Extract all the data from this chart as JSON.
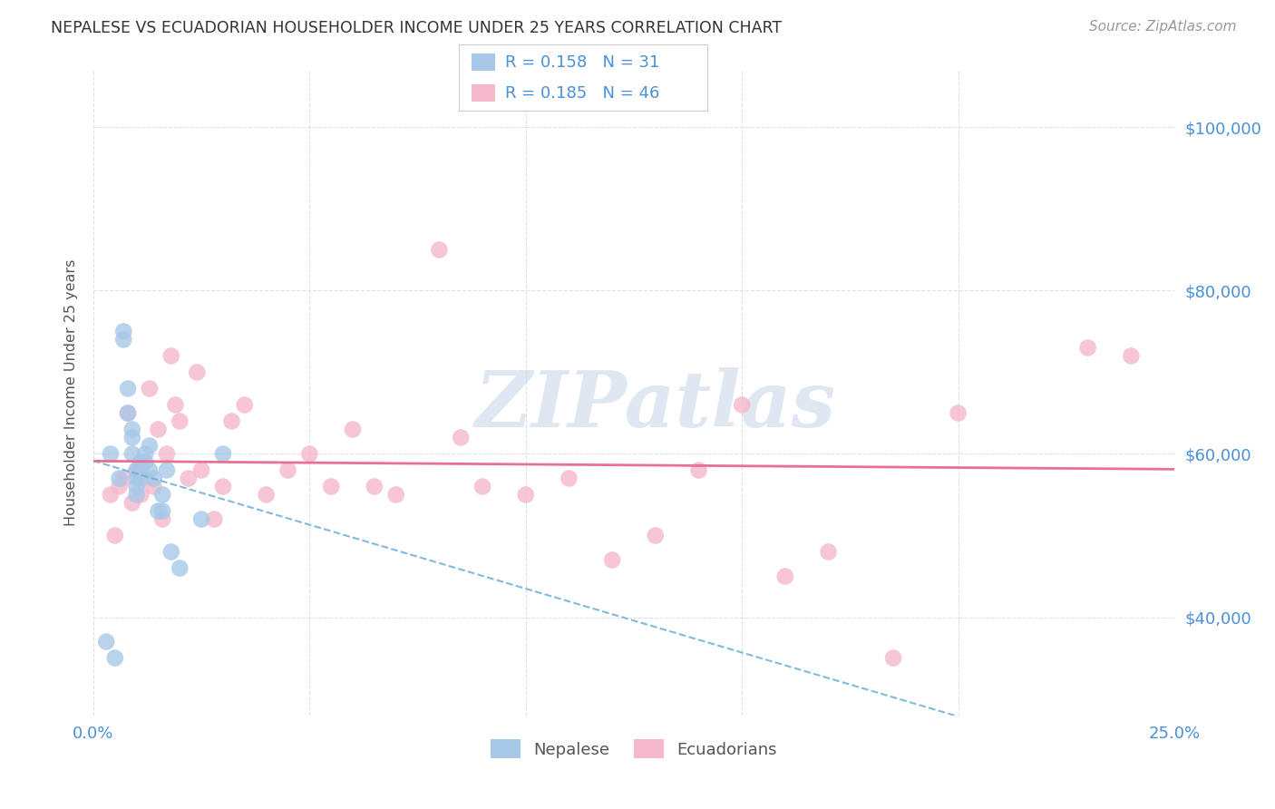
{
  "title": "NEPALESE VS ECUADORIAN HOUSEHOLDER INCOME UNDER 25 YEARS CORRELATION CHART",
  "source": "Source: ZipAtlas.com",
  "ylabel": "Householder Income Under 25 years",
  "watermark": "ZIPatlas",
  "xlim": [
    0.0,
    0.25
  ],
  "ylim": [
    28000,
    107000
  ],
  "xticks": [
    0.0,
    0.05,
    0.1,
    0.15,
    0.2,
    0.25
  ],
  "xticklabels": [
    "0.0%",
    "",
    "",
    "",
    "",
    "25.0%"
  ],
  "yticks": [
    40000,
    60000,
    80000,
    100000
  ],
  "yticklabels": [
    "$40,000",
    "$60,000",
    "$80,000",
    "$100,000"
  ],
  "legend_r_blue": "0.158",
  "legend_n_blue": "31",
  "legend_r_pink": "0.185",
  "legend_n_pink": "46",
  "blue_color": "#a8c8e8",
  "pink_color": "#f5b8cc",
  "blue_line_color": "#6aaed6",
  "pink_line_color": "#e87090",
  "grid_color": "#e0e0e0",
  "title_color": "#333333",
  "axis_color": "#4a90d9",
  "watermark_color": "#c8d8ea",
  "nepalese_x": [
    0.003,
    0.004,
    0.005,
    0.006,
    0.007,
    0.007,
    0.008,
    0.008,
    0.009,
    0.009,
    0.009,
    0.01,
    0.01,
    0.01,
    0.01,
    0.011,
    0.011,
    0.011,
    0.012,
    0.012,
    0.013,
    0.013,
    0.014,
    0.015,
    0.016,
    0.016,
    0.017,
    0.018,
    0.02,
    0.025,
    0.03
  ],
  "nepalese_y": [
    37000,
    60000,
    35000,
    57000,
    75000,
    74000,
    68000,
    65000,
    63000,
    62000,
    60000,
    58000,
    57000,
    56000,
    55000,
    59000,
    58000,
    57000,
    60000,
    59000,
    61000,
    58000,
    57000,
    53000,
    55000,
    53000,
    58000,
    48000,
    46000,
    52000,
    60000
  ],
  "ecuadorian_x": [
    0.004,
    0.005,
    0.006,
    0.007,
    0.008,
    0.009,
    0.01,
    0.011,
    0.012,
    0.013,
    0.014,
    0.015,
    0.016,
    0.017,
    0.018,
    0.019,
    0.02,
    0.022,
    0.024,
    0.025,
    0.028,
    0.03,
    0.032,
    0.035,
    0.04,
    0.045,
    0.05,
    0.055,
    0.06,
    0.065,
    0.07,
    0.08,
    0.085,
    0.09,
    0.1,
    0.11,
    0.12,
    0.13,
    0.14,
    0.15,
    0.16,
    0.17,
    0.185,
    0.2,
    0.23,
    0.24
  ],
  "ecuadorian_y": [
    55000,
    50000,
    56000,
    57000,
    65000,
    54000,
    58000,
    55000,
    57000,
    68000,
    56000,
    63000,
    52000,
    60000,
    72000,
    66000,
    64000,
    57000,
    70000,
    58000,
    52000,
    56000,
    64000,
    66000,
    55000,
    58000,
    60000,
    56000,
    63000,
    56000,
    55000,
    85000,
    62000,
    56000,
    55000,
    57000,
    47000,
    50000,
    58000,
    66000,
    45000,
    48000,
    35000,
    65000,
    73000,
    72000
  ]
}
